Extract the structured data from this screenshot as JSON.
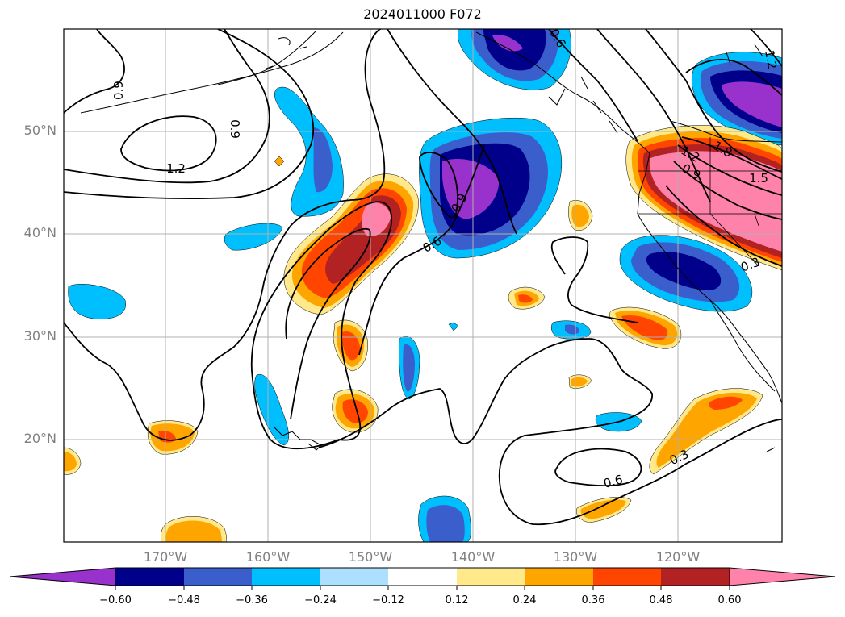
{
  "title": "2024011000 F072",
  "lat_labels": [
    "50°N",
    "40°N",
    "30°N",
    "20°N"
  ],
  "lon_labels": [
    "170°W",
    "160°W",
    "150°W",
    "140°W",
    "130°W",
    "120°W"
  ],
  "contour_labels": [
    "0.9",
    "0.9",
    "1.2",
    "0.6",
    "0.9",
    "0.6",
    "0.6",
    "0.3",
    "1.2",
    "1.8",
    "0.9",
    "1.5",
    "0.3",
    "1.2"
  ],
  "colorbar": {
    "ticks": [
      "−0.60",
      "−0.48",
      "−0.36",
      "−0.24",
      "−0.12",
      "0.12",
      "0.24",
      "0.36",
      "0.48",
      "0.60"
    ],
    "colors": [
      "#9932CC",
      "#00008B",
      "#3A5FCD",
      "#00BFFF",
      "#ADDFFF",
      "#FFFFFF",
      "#FFE98A",
      "#FFA500",
      "#FF4500",
      "#B22222",
      "#FF82AB"
    ]
  },
  "colors": {
    "v_purple": "#9932CC",
    "v_navy": "#00008B",
    "v_blue": "#3A5FCD",
    "v_sky": "#00BFFF",
    "v_pale": "#ADDFFF",
    "w_yellow": "#FFE98A",
    "w_orange": "#FFA500",
    "w_redorange": "#FF4500",
    "w_firebrick": "#B22222",
    "w_pink": "#FF82AB",
    "grid": "#b0b0b0"
  }
}
